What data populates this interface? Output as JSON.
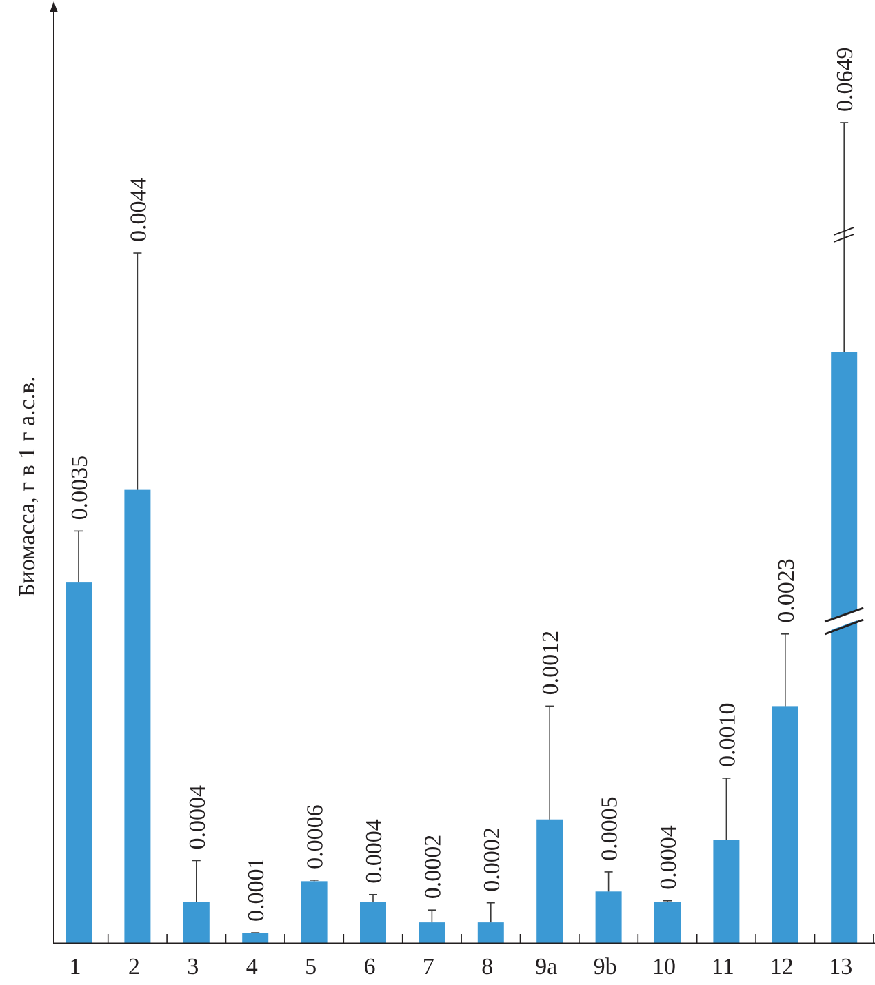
{
  "chart_data": {
    "type": "bar",
    "title": "",
    "xlabel": "",
    "ylabel": "Биомасса, г в 1 г а.с.в.",
    "categories": [
      "1",
      "2",
      "3",
      "4",
      "5",
      "6",
      "7",
      "8",
      "9a",
      "9b",
      "10",
      "11",
      "12",
      "13"
    ],
    "values": [
      0.0035,
      0.0044,
      0.0004,
      0.0001,
      0.0006,
      0.0004,
      0.0002,
      0.0002,
      0.0012,
      0.0005,
      0.0004,
      0.001,
      0.0023,
      0.0649
    ],
    "value_labels": [
      "0.0035",
      "0.0044",
      "0.0004",
      "0.0001",
      "0.0006",
      "0.0004",
      "0.0002",
      "0.0002",
      "0.0012",
      "0.0005",
      "0.0004",
      "0.0010",
      "0.0023",
      "0.0649"
    ],
    "errors": [
      0.0005,
      0.0023,
      0.0004,
      0.0,
      1e-05,
      7e-05,
      0.00012,
      0.00019,
      0.0011,
      0.00019,
      1e-05,
      0.0006,
      0.0007,
      null
    ],
    "axis_break_on": "13",
    "bar_color": "#3b99d4",
    "grid": false,
    "legend": "none"
  }
}
